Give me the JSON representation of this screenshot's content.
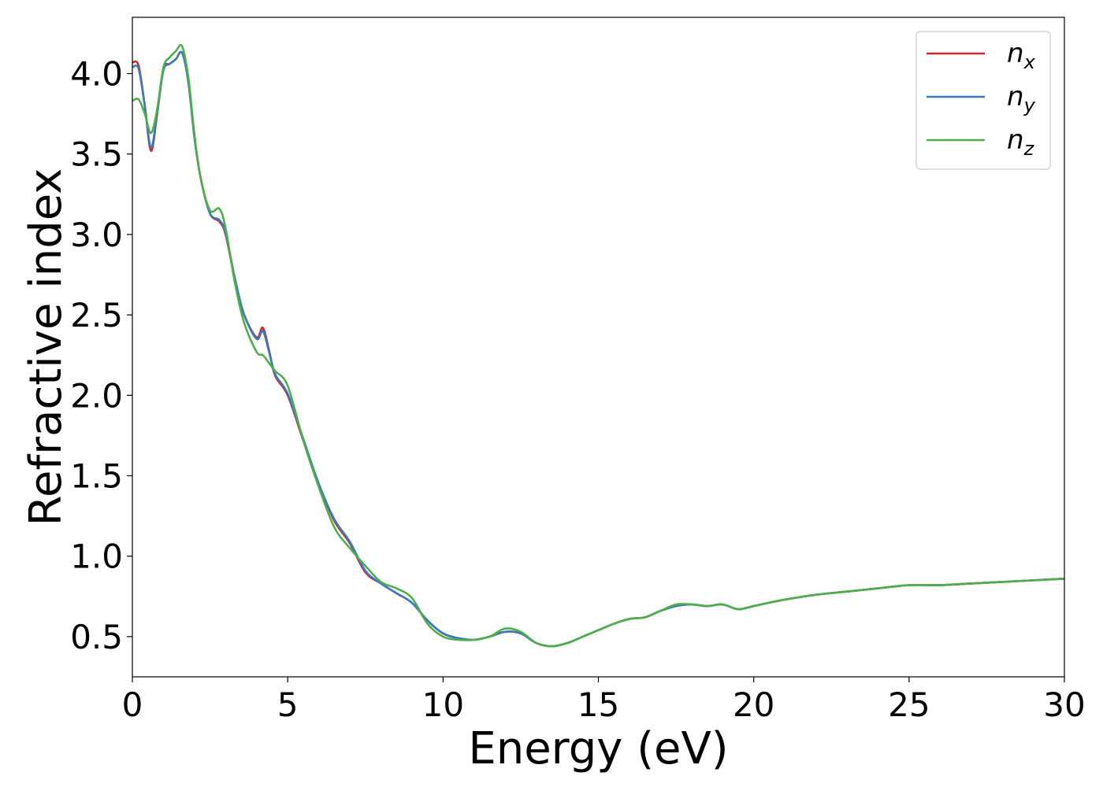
{
  "chart_data": {
    "type": "line",
    "title": "",
    "xlabel": "Energy (eV)",
    "ylabel": "Refractive index",
    "xlim": [
      0,
      30
    ],
    "ylim": [
      0.25,
      4.35
    ],
    "xticks": [
      0,
      5,
      10,
      15,
      20,
      25,
      30
    ],
    "xtick_labels": [
      "0",
      "5",
      "10",
      "15",
      "20",
      "25",
      "30"
    ],
    "yticks": [
      0.5,
      1.0,
      1.5,
      2.0,
      2.5,
      3.0,
      3.5,
      4.0
    ],
    "ytick_labels": [
      "0.5",
      "1.0",
      "1.5",
      "2.0",
      "2.5",
      "3.0",
      "3.5",
      "4.0"
    ],
    "grid": false,
    "legend_position": "top-right",
    "series": [
      {
        "name": "n_x",
        "color": "#d62728",
        "x": [
          0,
          0.2,
          0.4,
          0.6,
          0.8,
          1.0,
          1.2,
          1.4,
          1.6,
          1.8,
          2.0,
          2.2,
          2.5,
          2.8,
          3.0,
          3.3,
          3.6,
          4.0,
          4.2,
          4.4,
          4.6,
          5.0,
          5.5,
          6.0,
          6.5,
          7.0,
          7.5,
          8.0,
          8.5,
          9.0,
          9.5,
          10.0,
          10.5,
          11.0,
          11.5,
          12.0,
          12.5,
          13.0,
          13.5,
          14.0,
          14.5,
          15.0,
          15.5,
          16.0,
          16.5,
          17.0,
          17.5,
          18.0,
          18.5,
          19.0,
          19.5,
          20.0,
          21.0,
          22.0,
          23.0,
          24.0,
          25.0,
          26.0,
          27.0,
          28.0,
          29.0,
          30.0
        ],
        "y": [
          4.07,
          4.05,
          3.8,
          3.52,
          3.75,
          4.03,
          4.06,
          4.09,
          4.13,
          3.95,
          3.6,
          3.35,
          3.13,
          3.08,
          3.0,
          2.72,
          2.5,
          2.36,
          2.42,
          2.28,
          2.12,
          2.0,
          1.72,
          1.45,
          1.22,
          1.08,
          0.9,
          0.83,
          0.77,
          0.71,
          0.6,
          0.52,
          0.49,
          0.48,
          0.5,
          0.53,
          0.52,
          0.46,
          0.44,
          0.46,
          0.5,
          0.54,
          0.58,
          0.61,
          0.62,
          0.66,
          0.69,
          0.7,
          0.69,
          0.7,
          0.67,
          0.69,
          0.73,
          0.76,
          0.78,
          0.8,
          0.82,
          0.82,
          0.83,
          0.84,
          0.85,
          0.86
        ]
      },
      {
        "name": "n_y",
        "color": "#3a7bbf",
        "x": [
          0,
          0.2,
          0.4,
          0.6,
          0.8,
          1.0,
          1.2,
          1.4,
          1.6,
          1.8,
          2.0,
          2.2,
          2.5,
          2.8,
          3.0,
          3.3,
          3.6,
          4.0,
          4.2,
          4.4,
          4.6,
          5.0,
          5.5,
          6.0,
          6.5,
          7.0,
          7.5,
          8.0,
          8.5,
          9.0,
          9.5,
          10.0,
          10.5,
          11.0,
          11.5,
          12.0,
          12.5,
          13.0,
          13.5,
          14.0,
          14.5,
          15.0,
          15.5,
          16.0,
          16.5,
          17.0,
          17.5,
          18.0,
          18.5,
          19.0,
          19.5,
          20.0,
          21.0,
          22.0,
          23.0,
          24.0,
          25.0,
          26.0,
          27.0,
          28.0,
          29.0,
          30.0
        ],
        "y": [
          4.04,
          4.03,
          3.8,
          3.54,
          3.76,
          4.02,
          4.06,
          4.09,
          4.13,
          3.95,
          3.6,
          3.35,
          3.13,
          3.09,
          3.01,
          2.73,
          2.5,
          2.35,
          2.4,
          2.27,
          2.13,
          2.01,
          1.73,
          1.45,
          1.23,
          1.09,
          0.91,
          0.83,
          0.77,
          0.71,
          0.6,
          0.52,
          0.49,
          0.48,
          0.5,
          0.53,
          0.52,
          0.46,
          0.44,
          0.46,
          0.5,
          0.54,
          0.58,
          0.61,
          0.62,
          0.66,
          0.69,
          0.7,
          0.69,
          0.7,
          0.67,
          0.69,
          0.73,
          0.76,
          0.78,
          0.8,
          0.82,
          0.82,
          0.83,
          0.84,
          0.85,
          0.86
        ]
      },
      {
        "name": "n_z",
        "color": "#4daf4a",
        "x": [
          0,
          0.2,
          0.4,
          0.6,
          0.8,
          1.0,
          1.2,
          1.4,
          1.6,
          1.8,
          2.0,
          2.2,
          2.5,
          2.8,
          3.0,
          3.3,
          3.6,
          4.0,
          4.2,
          4.4,
          4.6,
          5.0,
          5.5,
          6.0,
          6.5,
          7.0,
          7.5,
          8.0,
          8.5,
          9.0,
          9.5,
          10.0,
          10.5,
          11.0,
          11.5,
          12.0,
          12.5,
          13.0,
          13.5,
          14.0,
          14.5,
          15.0,
          15.5,
          16.0,
          16.5,
          17.0,
          17.5,
          18.0,
          18.5,
          19.0,
          19.5,
          20.0,
          21.0,
          22.0,
          23.0,
          24.0,
          25.0,
          26.0,
          27.0,
          28.0,
          29.0,
          30.0
        ],
        "y": [
          3.83,
          3.84,
          3.75,
          3.63,
          3.78,
          4.04,
          4.1,
          4.14,
          4.17,
          3.98,
          3.62,
          3.35,
          3.15,
          3.16,
          3.04,
          2.7,
          2.45,
          2.27,
          2.25,
          2.2,
          2.15,
          2.06,
          1.72,
          1.43,
          1.18,
          1.05,
          0.94,
          0.84,
          0.8,
          0.74,
          0.58,
          0.5,
          0.48,
          0.48,
          0.5,
          0.55,
          0.53,
          0.46,
          0.44,
          0.46,
          0.5,
          0.54,
          0.58,
          0.61,
          0.62,
          0.66,
          0.7,
          0.7,
          0.69,
          0.7,
          0.67,
          0.69,
          0.73,
          0.76,
          0.78,
          0.8,
          0.82,
          0.82,
          0.83,
          0.84,
          0.85,
          0.86
        ]
      }
    ]
  },
  "legend": {
    "entries": [
      {
        "base": "n",
        "sub": "x"
      },
      {
        "base": "n",
        "sub": "y"
      },
      {
        "base": "n",
        "sub": "z"
      }
    ]
  }
}
